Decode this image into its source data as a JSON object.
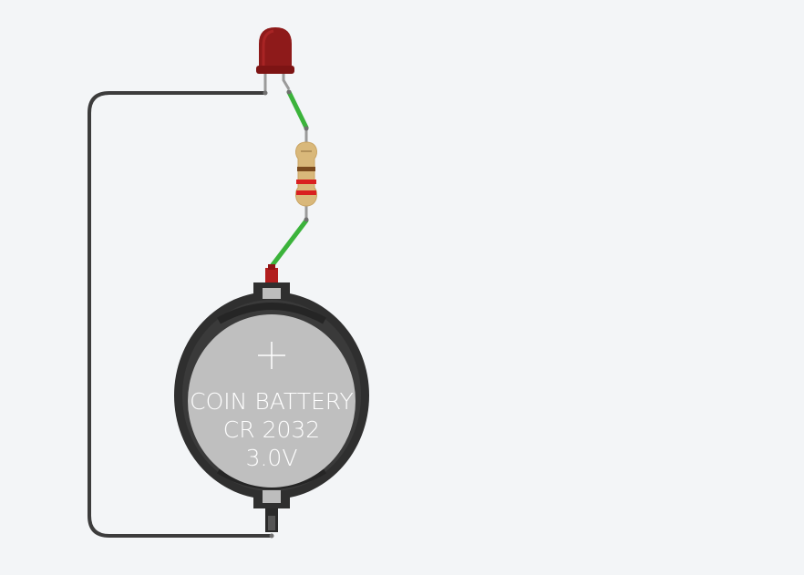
{
  "canvas": {
    "background": "#f3f5f7"
  },
  "components": {
    "led": {
      "icon": "red-led-icon",
      "color": "#8e1a1a"
    },
    "resistor": {
      "icon": "resistor-icon",
      "band_colors": [
        "#7a4a1e",
        "#d92020",
        "#d92020"
      ]
    },
    "battery": {
      "icon": "coin-battery-icon",
      "plus_symbol": "+",
      "line1": "COIN BATTERY",
      "line2": "CR 2032",
      "line3": "3.0V"
    }
  },
  "wires": {
    "led_to_resistor": {
      "color": "#3bb33b"
    },
    "resistor_to_battery": {
      "color": "#3bb33b"
    },
    "ground_loop": {
      "color": "#3c3c3c"
    }
  }
}
